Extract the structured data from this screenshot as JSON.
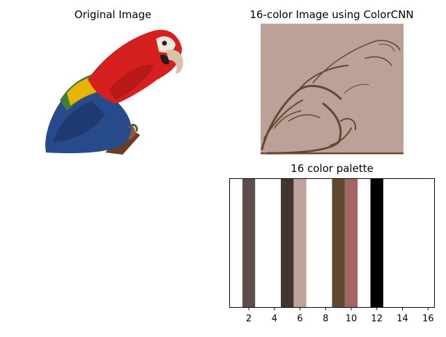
{
  "titles": {
    "original": "Original Image",
    "quantized": "16-color Image using ColorCNN",
    "palette": "16 color palette"
  },
  "colors": {
    "quantized_bg": "#bba198",
    "quantized_edge": "#634830"
  },
  "chart_data": {
    "type": "bar",
    "title": "16 color palette",
    "xlim": [
      0.5,
      16.5
    ],
    "ylim": [
      0,
      1
    ],
    "x_ticks": [
      2,
      4,
      6,
      8,
      10,
      12,
      14,
      16
    ],
    "bar_width": 1.0,
    "categories": [
      1,
      2,
      3,
      4,
      5,
      6,
      7,
      8,
      9,
      10,
      11,
      12,
      13,
      14,
      15,
      16
    ],
    "colors": [
      "#ffffff",
      "#5e4e4a",
      "#ffffff",
      "#ffffff",
      "#433530",
      "#c0a39c",
      "#ffffff",
      "#ffffff",
      "#634830",
      "#a36464",
      "#ffffff",
      "#000000",
      "#ffffff",
      "#ffffff",
      "#ffffff",
      "#ffffff"
    ],
    "values": [
      1,
      1,
      1,
      1,
      1,
      1,
      1,
      1,
      1,
      1,
      1,
      1,
      1,
      1,
      1,
      1
    ]
  }
}
